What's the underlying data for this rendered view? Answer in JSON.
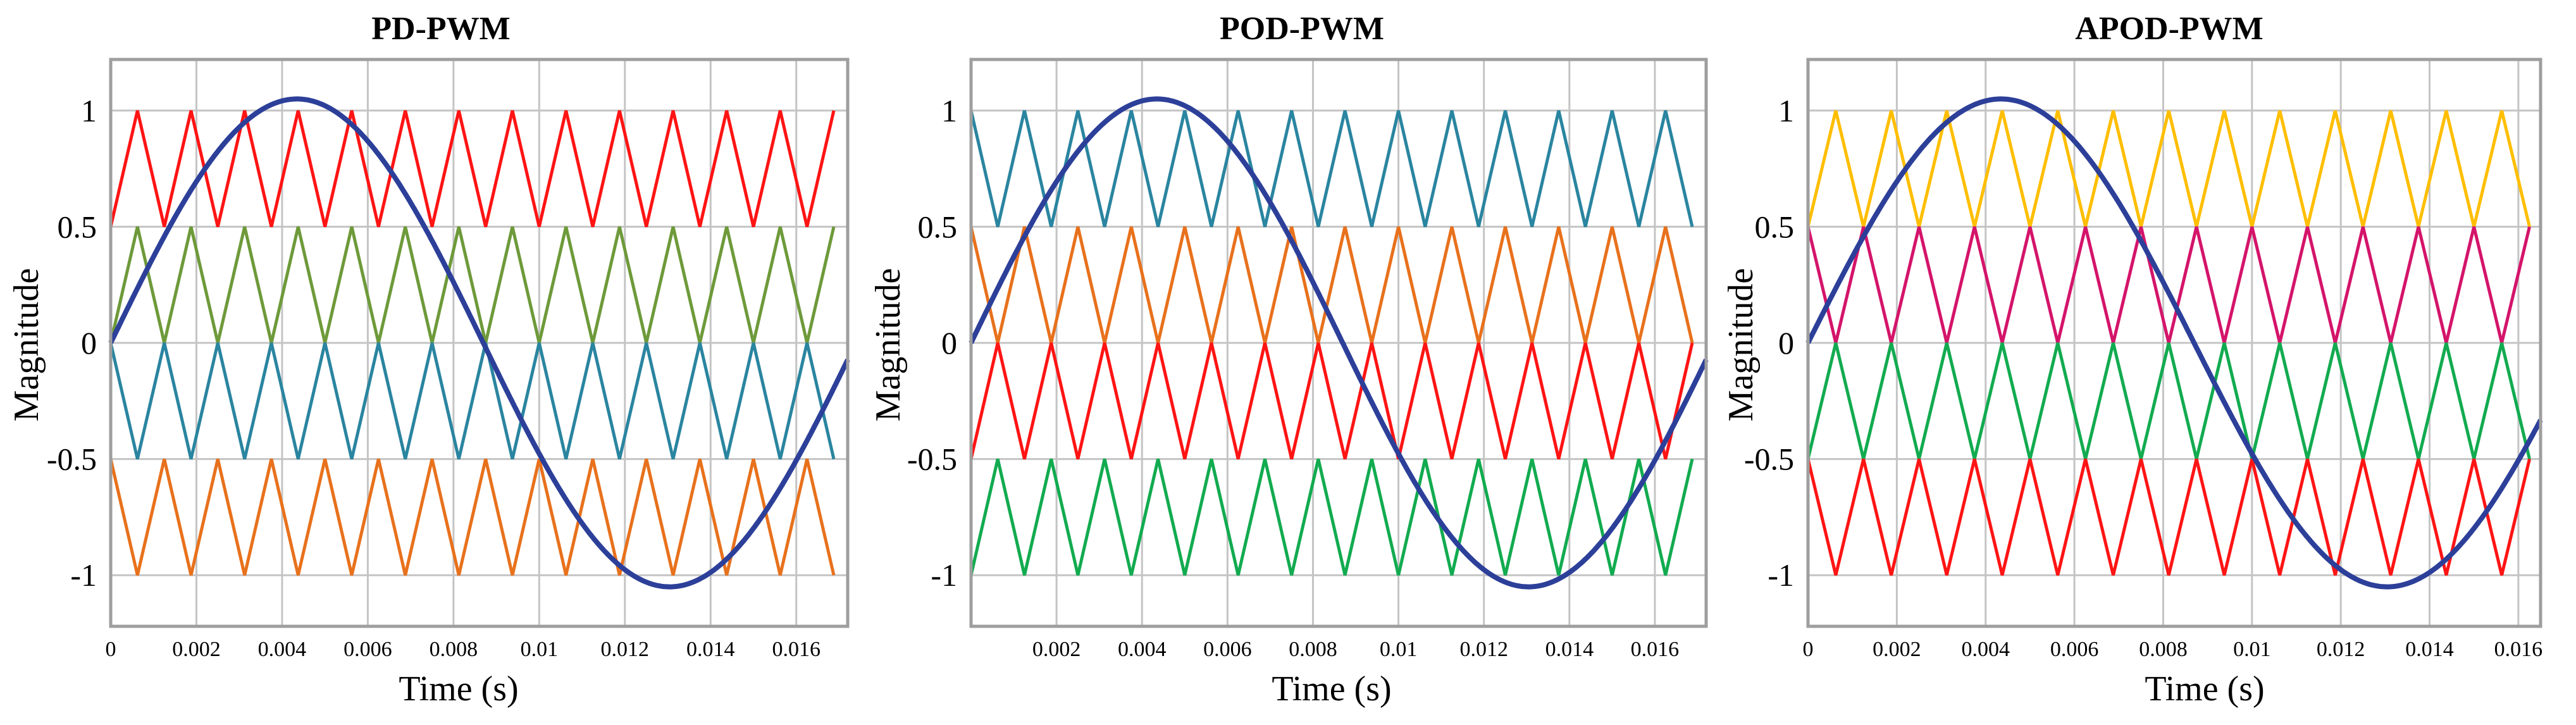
{
  "chart_data": [
    {
      "type": "line",
      "title": "PD-PWM",
      "xlabel": "Time (s)",
      "ylabel": "Magnitude",
      "xlim": [
        0,
        0.0172
      ],
      "ylim": [
        -1.22,
        1.22
      ],
      "grid": true,
      "x_ticks": [
        0,
        0.002,
        0.004,
        0.006,
        0.008,
        0.01,
        0.012,
        0.014,
        0.016
      ],
      "x_tick_labels": [
        "0",
        "0.002",
        "0.004",
        "0.006",
        "0.008",
        "0.01",
        "0.012",
        "0.014",
        "0.016"
      ],
      "y_ticks": [
        1,
        0.5,
        0,
        -0.5,
        -1
      ],
      "y_tick_labels": [
        "1",
        "0.5",
        "0",
        "-0.5",
        "-1"
      ],
      "reference": {
        "amplitude": 1.05,
        "frequency_hz": 57.5,
        "color": "#2c3f99"
      },
      "carriers": {
        "period_s": 0.00125,
        "series": [
          {
            "band": [
              0.5,
              1
            ],
            "phase": "up",
            "color": "#ff1414"
          },
          {
            "band": [
              0,
              0.5
            ],
            "phase": "up",
            "color": "#6e9a3a"
          },
          {
            "band": [
              -0.5,
              0
            ],
            "phase": "down",
            "color": "#2a85a0"
          },
          {
            "band": [
              -1,
              -0.5
            ],
            "phase": "down",
            "color": "#e8711c"
          }
        ]
      }
    },
    {
      "type": "line",
      "title": "POD-PWM",
      "xlabel": "Time (s)",
      "ylabel": "Magnitude",
      "xlim": [
        0,
        0.0172
      ],
      "ylim": [
        -1.22,
        1.22
      ],
      "grid": true,
      "x_ticks": [
        0.002,
        0.004,
        0.006,
        0.008,
        0.01,
        0.012,
        0.014,
        0.016
      ],
      "x_tick_labels": [
        "0.002",
        "0.004",
        "0.006",
        "0.008",
        "0.01",
        "0.012",
        "0.014",
        "0.016"
      ],
      "y_ticks": [
        1,
        0.5,
        0,
        -0.5,
        -1
      ],
      "y_tick_labels": [
        "1",
        "0.5",
        "0",
        "-0.5",
        "-1"
      ],
      "reference": {
        "amplitude": 1.05,
        "frequency_hz": 57.5,
        "color": "#2c3f99"
      },
      "carriers": {
        "period_s": 0.00125,
        "series": [
          {
            "band": [
              0.5,
              1
            ],
            "phase": "down",
            "color": "#2a85a0"
          },
          {
            "band": [
              0,
              0.5
            ],
            "phase": "down",
            "color": "#e8711c"
          },
          {
            "band": [
              -0.5,
              0
            ],
            "phase": "up",
            "color": "#ff1414"
          },
          {
            "band": [
              -1,
              -0.5
            ],
            "phase": "up",
            "color": "#12ab50"
          }
        ]
      }
    },
    {
      "type": "line",
      "title": "APOD-PWM",
      "xlabel": "Time (s)",
      "ylabel": "Magnitude",
      "xlim": [
        0,
        0.0165
      ],
      "ylim": [
        -1.22,
        1.22
      ],
      "grid": true,
      "x_ticks": [
        0,
        0.002,
        0.004,
        0.006,
        0.008,
        0.01,
        0.012,
        0.014,
        0.016
      ],
      "x_tick_labels": [
        "0",
        "0.002",
        "0.004",
        "0.006",
        "0.008",
        "0.01",
        "0.012",
        "0.014",
        "0.016"
      ],
      "y_ticks": [
        1,
        0.5,
        0,
        -0.5,
        -1
      ],
      "y_tick_labels": [
        "1",
        "0.5",
        "0",
        "-0.5",
        "-1"
      ],
      "reference": {
        "amplitude": 1.05,
        "frequency_hz": 57.5,
        "color": "#2c3f99"
      },
      "carriers": {
        "period_s": 0.00125,
        "series": [
          {
            "band": [
              0.5,
              1
            ],
            "phase": "up",
            "color": "#ffbe00"
          },
          {
            "band": [
              0,
              0.5
            ],
            "phase": "down",
            "color": "#d4146a"
          },
          {
            "band": [
              -0.5,
              0
            ],
            "phase": "up",
            "color": "#12ab50"
          },
          {
            "band": [
              -1,
              -0.5
            ],
            "phase": "down",
            "color": "#ff1414"
          }
        ]
      }
    }
  ]
}
